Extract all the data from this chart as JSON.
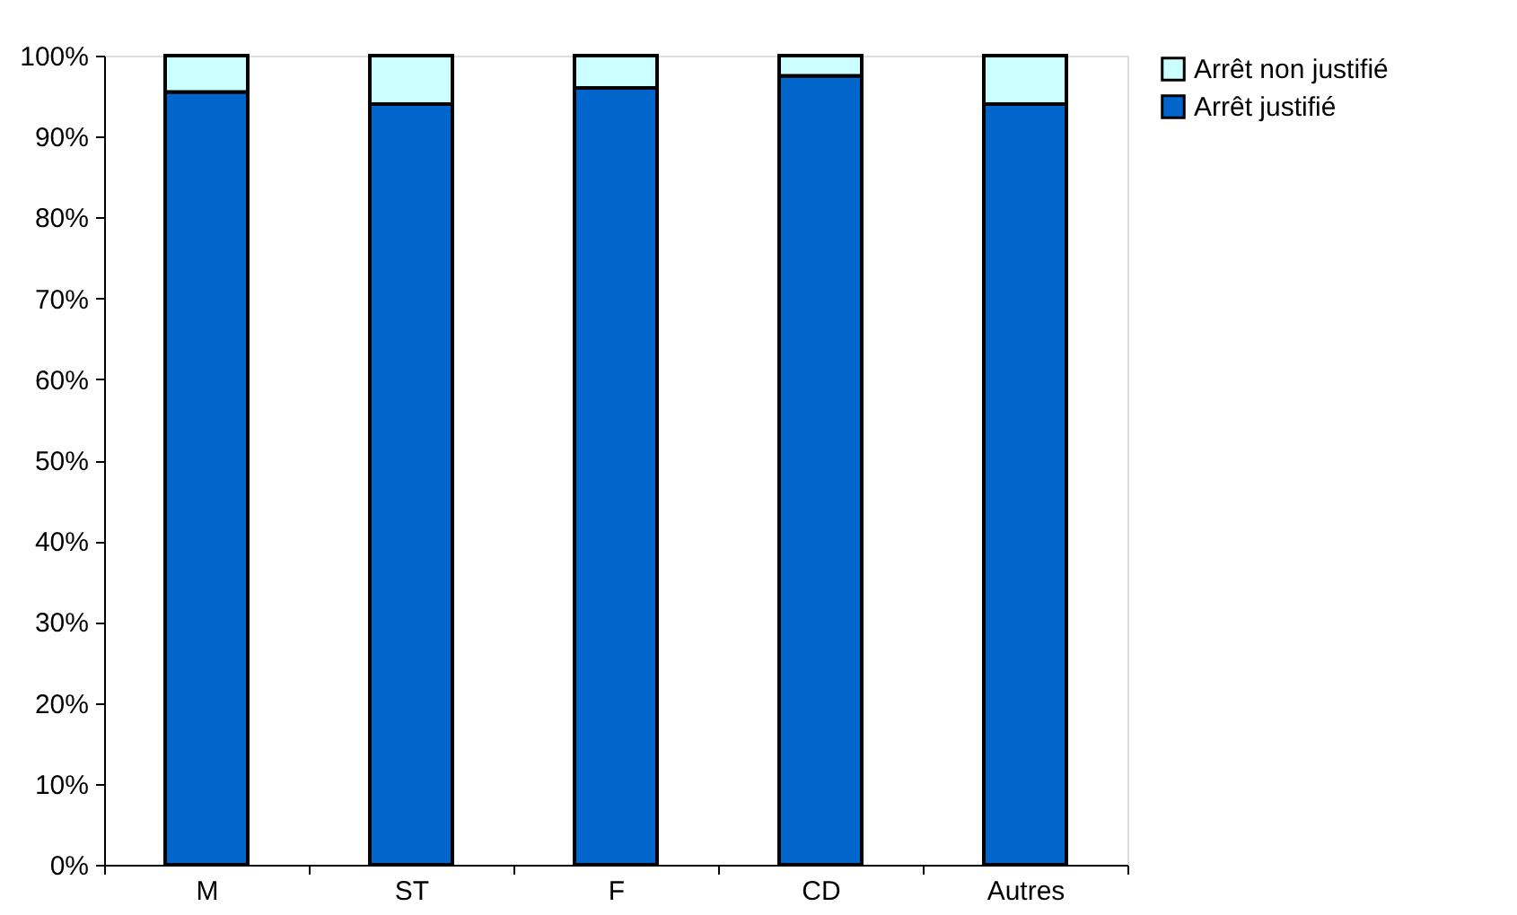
{
  "chart_data": {
    "type": "bar",
    "stacked": true,
    "categories": [
      "M",
      "ST",
      "F",
      "CD",
      "Autres"
    ],
    "series": [
      {
        "name": "Arrêt justifié",
        "color": "#0066cc",
        "values": [
          95.5,
          94,
          96,
          97.5,
          94
        ]
      },
      {
        "name": "Arrêt non justifié",
        "color": "#ccffff",
        "values": [
          4.5,
          6,
          4,
          2.5,
          6
        ]
      }
    ],
    "ylim": [
      0,
      100
    ],
    "yticks": [
      {
        "value": 0,
        "label": "0%"
      },
      {
        "value": 10,
        "label": "10%"
      },
      {
        "value": 20,
        "label": "20%"
      },
      {
        "value": 30,
        "label": "30%"
      },
      {
        "value": 40,
        "label": "40%"
      },
      {
        "value": 50,
        "label": "50%"
      },
      {
        "value": 60,
        "label": "60%"
      },
      {
        "value": 70,
        "label": "70%"
      },
      {
        "value": 80,
        "label": "80%"
      },
      {
        "value": 90,
        "label": "90%"
      },
      {
        "value": 100,
        "label": "100%"
      }
    ],
    "grid": false,
    "legend": "right"
  }
}
